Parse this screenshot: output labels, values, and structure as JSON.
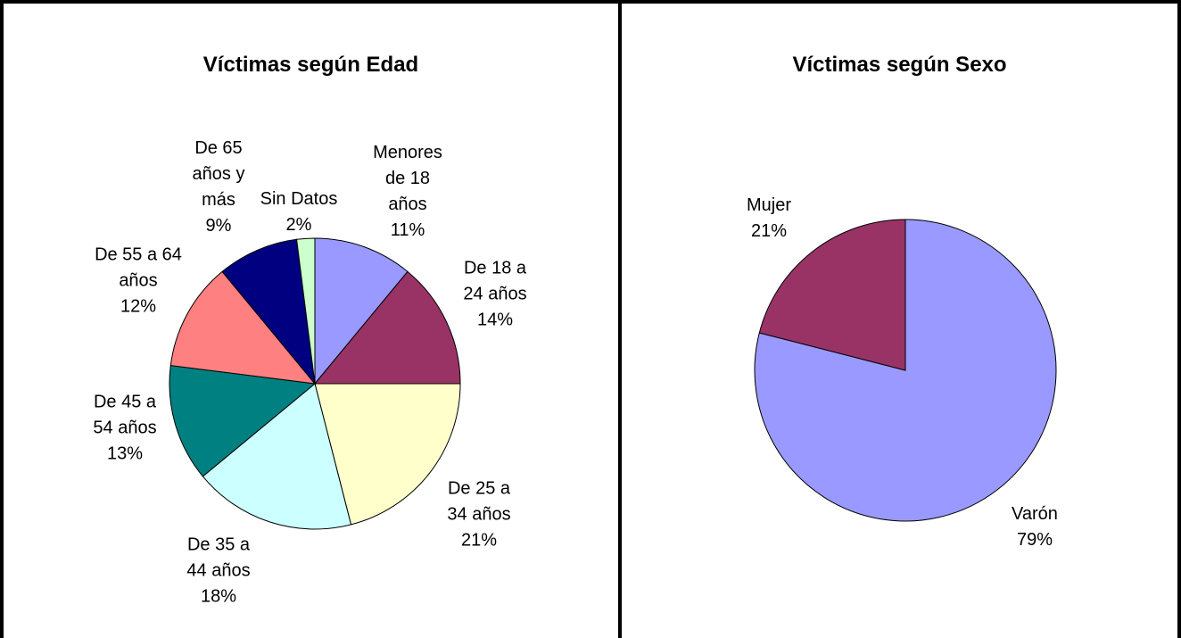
{
  "chart_data": [
    {
      "type": "pie",
      "title": "Víctimas según Edad",
      "categories": [
        "Menores de 18 años",
        "De 18 a 24 años",
        "De 25 a 34 años",
        "De 35 a 44 años",
        "De 45 a 54 años",
        "De 55 a 64 años",
        "De 65 años y más",
        "Sin Datos"
      ],
      "values": [
        11,
        14,
        21,
        18,
        13,
        12,
        9,
        2
      ],
      "value_labels": [
        "11%",
        "14%",
        "21%",
        "18%",
        "13%",
        "12%",
        "9%",
        "2%"
      ],
      "colors": [
        "#9999ff",
        "#993366",
        "#ffffcc",
        "#ccffff",
        "#008080",
        "#ff8080",
        "#000080",
        "#ccffcc"
      ]
    },
    {
      "type": "pie",
      "title": "Víctimas según Sexo",
      "categories": [
        "Varón",
        "Mujer"
      ],
      "values": [
        79,
        21
      ],
      "value_labels": [
        "79%",
        "21%"
      ],
      "colors": [
        "#9999ff",
        "#993366"
      ]
    }
  ]
}
